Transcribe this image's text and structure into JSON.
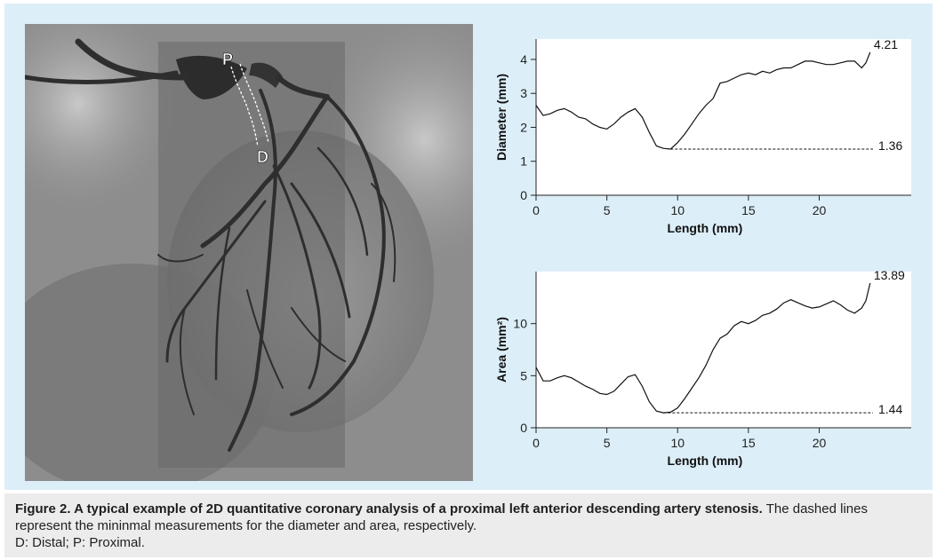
{
  "figure_caption": {
    "title": "Figure 2. A typical example of 2D quantitative coronary analysis of a proximal left anterior descending artery stenosis.",
    "text": " The dashed lines represent the mininmal measurements for the diameter and area, respectively.",
    "abbreviations": "D: Distal; P: Proximal."
  },
  "angiogram": {
    "label_proximal": "P",
    "label_distal": "D"
  },
  "colors": {
    "panel_background": "#dceef8",
    "plot_background": "#ffffff",
    "caption_background": "#ececec",
    "curve": "#111111"
  },
  "chart_data": [
    {
      "type": "line",
      "xlabel": "Length (mm)",
      "ylabel": "Diameter (mm)",
      "xlim": [
        0,
        26.5
      ],
      "ylim": [
        0,
        4.6
      ],
      "xticks": [
        0,
        5,
        10,
        15,
        20
      ],
      "yticks": [
        0,
        1,
        2,
        3,
        4
      ],
      "grid": false,
      "series": [
        {
          "x": [
            0,
            0.5,
            1.0,
            1.5,
            2.0,
            2.5,
            3.0,
            3.5,
            4.0,
            4.5,
            5.0,
            5.5,
            6.0,
            6.5,
            7.0,
            7.5,
            8.0,
            8.5,
            9.0,
            9.5,
            10.0,
            10.5,
            11.0,
            11.5,
            12.0,
            12.5,
            13.0,
            13.5,
            14.0,
            14.5,
            15.0,
            15.5,
            16.0,
            16.5,
            17.0,
            17.5,
            18.0,
            18.5,
            19.0,
            19.5,
            20.0,
            20.5,
            21.0,
            21.5,
            22.0,
            22.5,
            23.0,
            23.3,
            23.6
          ],
          "y": [
            2.65,
            2.35,
            2.4,
            2.5,
            2.55,
            2.45,
            2.3,
            2.25,
            2.1,
            2.0,
            1.95,
            2.1,
            2.3,
            2.45,
            2.55,
            2.3,
            1.85,
            1.45,
            1.38,
            1.36,
            1.55,
            1.8,
            2.1,
            2.4,
            2.65,
            2.85,
            3.3,
            3.35,
            3.45,
            3.55,
            3.6,
            3.55,
            3.65,
            3.6,
            3.7,
            3.75,
            3.75,
            3.85,
            3.95,
            3.95,
            3.9,
            3.85,
            3.85,
            3.9,
            3.95,
            3.95,
            3.75,
            3.9,
            4.21
          ]
        }
      ],
      "annotations": [
        {
          "label": "4.21",
          "x": 23.6,
          "y": 4.21
        },
        {
          "label": "1.36",
          "x": 9.5,
          "y": 1.36,
          "dashed_to_x": 23.8
        }
      ]
    },
    {
      "type": "line",
      "xlabel": "Length (mm)",
      "ylabel": "Area (mm²)",
      "xlim": [
        0,
        26.5
      ],
      "ylim": [
        0,
        15
      ],
      "xticks": [
        0,
        5,
        10,
        15,
        20
      ],
      "yticks": [
        0,
        5,
        10
      ],
      "grid": false,
      "series": [
        {
          "x": [
            0,
            0.5,
            1.0,
            1.5,
            2.0,
            2.5,
            3.0,
            3.5,
            4.0,
            4.5,
            5.0,
            5.5,
            6.0,
            6.5,
            7.0,
            7.5,
            8.0,
            8.5,
            9.0,
            9.5,
            10.0,
            10.5,
            11.0,
            11.5,
            12.0,
            12.5,
            13.0,
            13.5,
            14.0,
            14.5,
            15.0,
            15.5,
            16.0,
            16.5,
            17.0,
            17.5,
            18.0,
            18.5,
            19.0,
            19.5,
            20.0,
            20.5,
            21.0,
            21.5,
            22.0,
            22.5,
            23.0,
            23.3,
            23.6
          ],
          "y": [
            5.8,
            4.5,
            4.5,
            4.8,
            5.0,
            4.8,
            4.4,
            4.0,
            3.7,
            3.3,
            3.2,
            3.5,
            4.2,
            4.9,
            5.1,
            4.0,
            2.5,
            1.6,
            1.44,
            1.5,
            1.9,
            2.8,
            3.8,
            4.8,
            6.0,
            7.5,
            8.6,
            9.0,
            9.8,
            10.2,
            10.0,
            10.3,
            10.8,
            11.0,
            11.4,
            12.0,
            12.3,
            12.0,
            11.7,
            11.5,
            11.6,
            11.9,
            12.2,
            11.8,
            11.3,
            11.0,
            11.5,
            12.2,
            13.89
          ]
        }
      ],
      "annotations": [
        {
          "label": "13.89",
          "x": 23.6,
          "y": 13.89
        },
        {
          "label": "1.44",
          "x": 9.0,
          "y": 1.44,
          "dashed_to_x": 23.8
        }
      ]
    }
  ]
}
